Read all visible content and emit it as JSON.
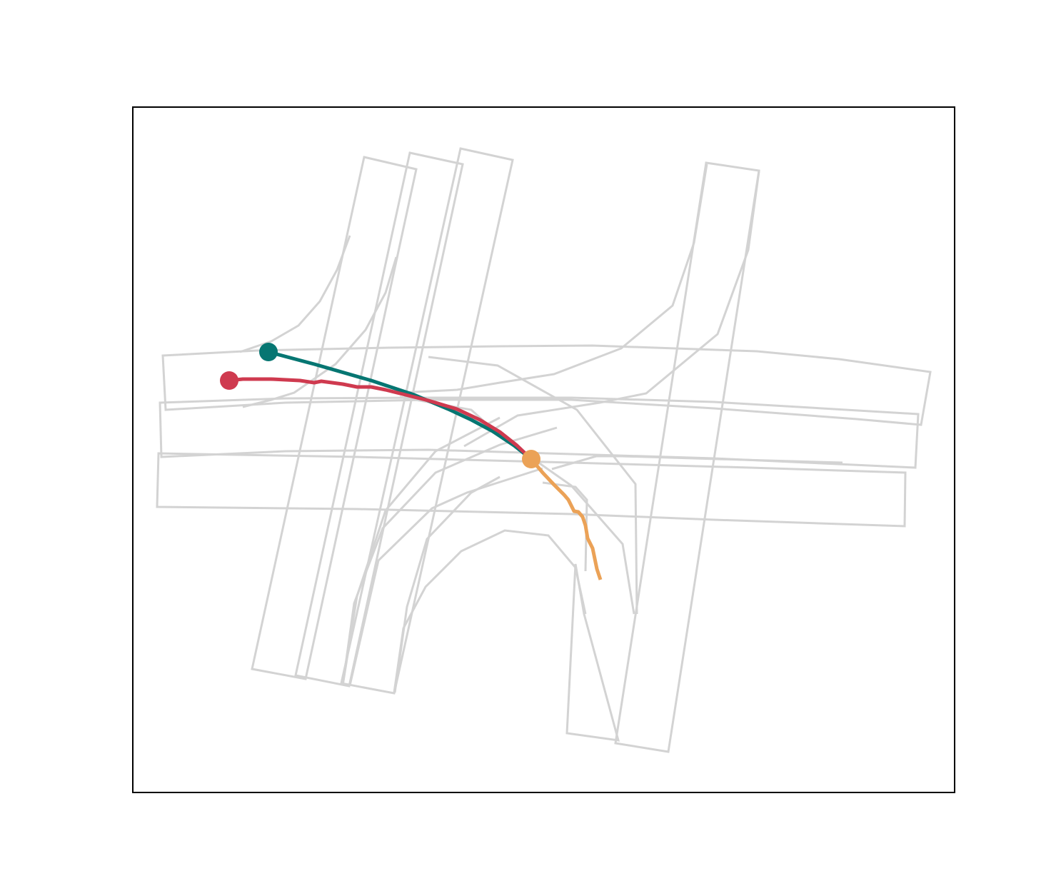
{
  "colors": {
    "background": "#ffffff",
    "frame": "#000000",
    "lane": "#d3d3d3",
    "history": "#cf3a4f",
    "ground_truth": "#067672",
    "prediction": "#eba257"
  },
  "trajectories": [
    {
      "id": "history",
      "color": "#cf3a4f"
    },
    {
      "id": "ground_truth",
      "color": "#067672"
    },
    {
      "id": "prediction",
      "color": "#eba257"
    }
  ]
}
